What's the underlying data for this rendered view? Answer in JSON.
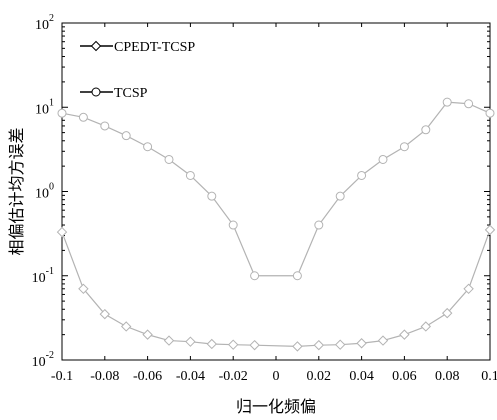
{
  "chart_data": {
    "type": "line",
    "xlabel": "归一化频偏",
    "ylabel": "相偏估计均方误差",
    "x_ticks": [
      "-0.1",
      "-0.08",
      "-0.06",
      "-0.04",
      "-0.02",
      "0",
      "0.02",
      "0.04",
      "0.06",
      "0.08",
      "0.1"
    ],
    "x_tick_values": [
      -0.1,
      -0.08,
      -0.06,
      -0.04,
      -0.02,
      0,
      0.02,
      0.04,
      0.06,
      0.08,
      0.1
    ],
    "y_ticks": [
      {
        "base": "10",
        "exp": "-2",
        "value": 0.01
      },
      {
        "base": "10",
        "exp": "-1",
        "value": 0.1
      },
      {
        "base": "10",
        "exp": "0",
        "value": 1
      },
      {
        "base": "10",
        "exp": "1",
        "value": 10
      },
      {
        "base": "10",
        "exp": "2",
        "value": 100
      }
    ],
    "xlim": [
      -0.1,
      0.1
    ],
    "ylim": [
      0.01,
      100
    ],
    "y_scale": "log",
    "grid": false,
    "legend_position": "top-left",
    "line_color": "#b3b3b3",
    "legend_line_color": "#000000",
    "series": [
      {
        "name": "CPEDT-TCSP",
        "marker": "diamond",
        "x": [
          -0.1,
          -0.09,
          -0.08,
          -0.07,
          -0.06,
          -0.05,
          -0.04,
          -0.03,
          -0.02,
          -0.01,
          0.01,
          0.02,
          0.03,
          0.04,
          0.05,
          0.06,
          0.07,
          0.08,
          0.09,
          0.1
        ],
        "y": [
          0.33,
          0.07,
          0.035,
          0.025,
          0.02,
          0.017,
          0.0165,
          0.0155,
          0.0152,
          0.015,
          0.0145,
          0.015,
          0.0152,
          0.0158,
          0.017,
          0.02,
          0.025,
          0.036,
          0.07,
          0.35
        ]
      },
      {
        "name": "TCSP",
        "marker": "circle",
        "x": [
          -0.1,
          -0.09,
          -0.08,
          -0.07,
          -0.06,
          -0.05,
          -0.04,
          -0.03,
          -0.02,
          -0.01,
          0.01,
          0.02,
          0.03,
          0.04,
          0.05,
          0.06,
          0.07,
          0.08,
          0.09,
          0.1
        ],
        "y": [
          8.5,
          7.6,
          6.0,
          4.6,
          3.4,
          2.4,
          1.55,
          0.88,
          0.4,
          0.1,
          0.1,
          0.4,
          0.88,
          1.55,
          2.4,
          3.4,
          5.4,
          11.5,
          11.0,
          8.5
        ]
      }
    ]
  }
}
